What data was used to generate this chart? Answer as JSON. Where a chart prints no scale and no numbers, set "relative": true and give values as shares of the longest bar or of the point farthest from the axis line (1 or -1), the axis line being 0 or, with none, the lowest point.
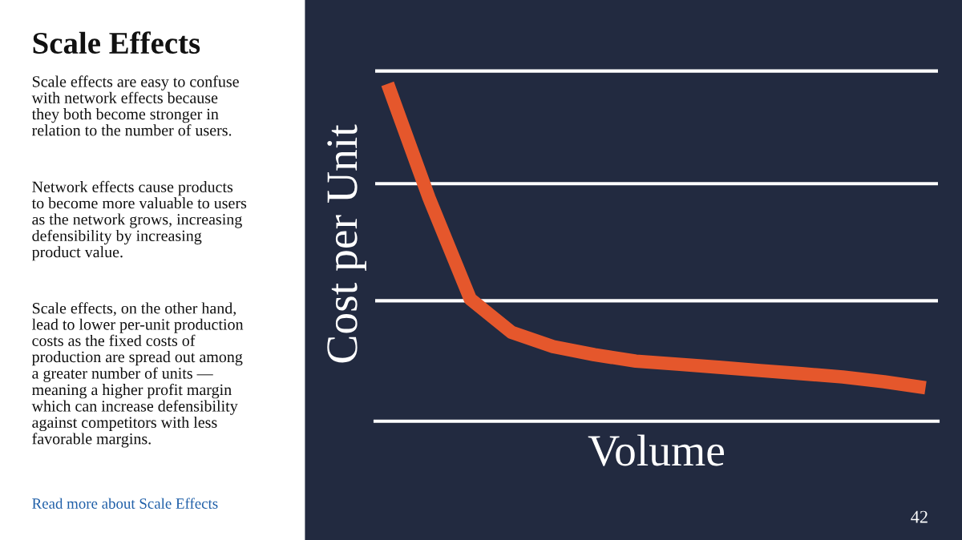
{
  "chart_data": {
    "type": "line",
    "relative": true,
    "title": "Scale Effects",
    "xlabel": "Volume",
    "ylabel": "Cost per Unit",
    "categories": [
      null,
      null,
      null,
      null,
      null,
      null,
      null,
      null,
      null,
      null,
      null,
      null,
      null,
      null
    ],
    "series": [
      {
        "color": "#e5572c",
        "values": [
          1.0,
          0.662,
          0.362,
          0.263,
          0.221,
          0.197,
          0.178,
          0.169,
          0.16,
          0.15,
          0.141,
          0.131,
          0.117,
          0.099
        ]
      }
    ],
    "ref_lines": [
      {
        "axis": "y",
        "value": 0.357,
        "color": "#ffffff"
      },
      {
        "axis": "y",
        "value": 0.704,
        "color": "#ffffff"
      },
      {
        "axis": "y",
        "value": 1.038,
        "color": "#ffffff"
      }
    ],
    "legend": false,
    "marker": "none",
    "line_style": "solid",
    "annotations": [
      "Scale effects are easy to confuse\nwith network effects because\nthey both become stronger in\nrelation to the number of users.",
      "Network effects cause products\nto become more valuable to users\nas the network grows, increasing\ndefensibility by increasing\nproduct value.",
      "Scale effects, on the other hand,\nlead to lower per-unit production\ncosts as the fixed costs of\nproduction are spread out among\na greater number of units —\nmeaning a higher profit margin\nwhich can increase defensibility\nagainst competitors with less\nfavorable margins.",
      "Read more about Scale Effects",
      "42"
    ]
  }
}
